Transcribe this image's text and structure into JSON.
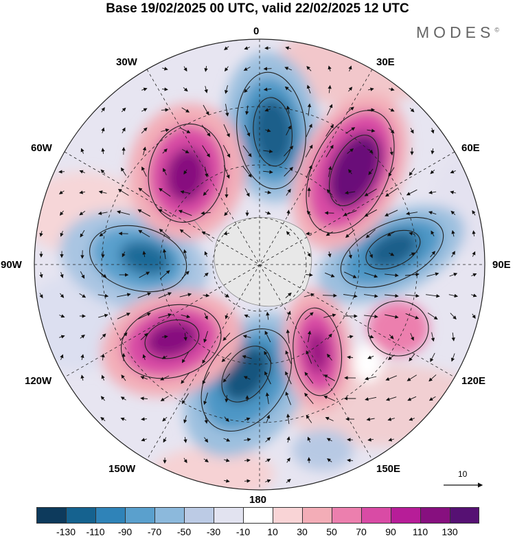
{
  "header": {
    "title": "Base 19/02/2025 00 UTC, valid 22/02/2025 12 UTC",
    "brand": "MODES",
    "brand_mark": "©"
  },
  "map": {
    "projection": "south-polar-stereographic",
    "field": "anomaly-with-wind-vectors",
    "longitude_labels": [
      {
        "id": "0",
        "text": "0"
      },
      {
        "id": "30e",
        "text": "30E"
      },
      {
        "id": "60e",
        "text": "60E"
      },
      {
        "id": "90e",
        "text": "90E"
      },
      {
        "id": "120e",
        "text": "120E"
      },
      {
        "id": "150e",
        "text": "150E"
      },
      {
        "id": "180",
        "text": "180"
      },
      {
        "id": "150w",
        "text": "150W"
      },
      {
        "id": "120w",
        "text": "120W"
      },
      {
        "id": "90w",
        "text": "90W"
      },
      {
        "id": "60w",
        "text": "60W"
      },
      {
        "id": "30w",
        "text": "30W"
      }
    ],
    "vector_reference": {
      "value": "10"
    }
  },
  "colorbar": {
    "ticks": [
      "-130",
      "-110",
      "-90",
      "-70",
      "-50",
      "-30",
      "-10",
      "10",
      "30",
      "50",
      "70",
      "90",
      "110",
      "130"
    ],
    "colors": [
      "#0d3a5c",
      "#15628f",
      "#2f83b8",
      "#5aa0cd",
      "#8cb9dc",
      "#bccbe5",
      "#e2e3f0",
      "#ffffff",
      "#f9d4d6",
      "#f3adb7",
      "#ec7fae",
      "#d94ba5",
      "#b71d98",
      "#87107f",
      "#561173"
    ]
  }
}
